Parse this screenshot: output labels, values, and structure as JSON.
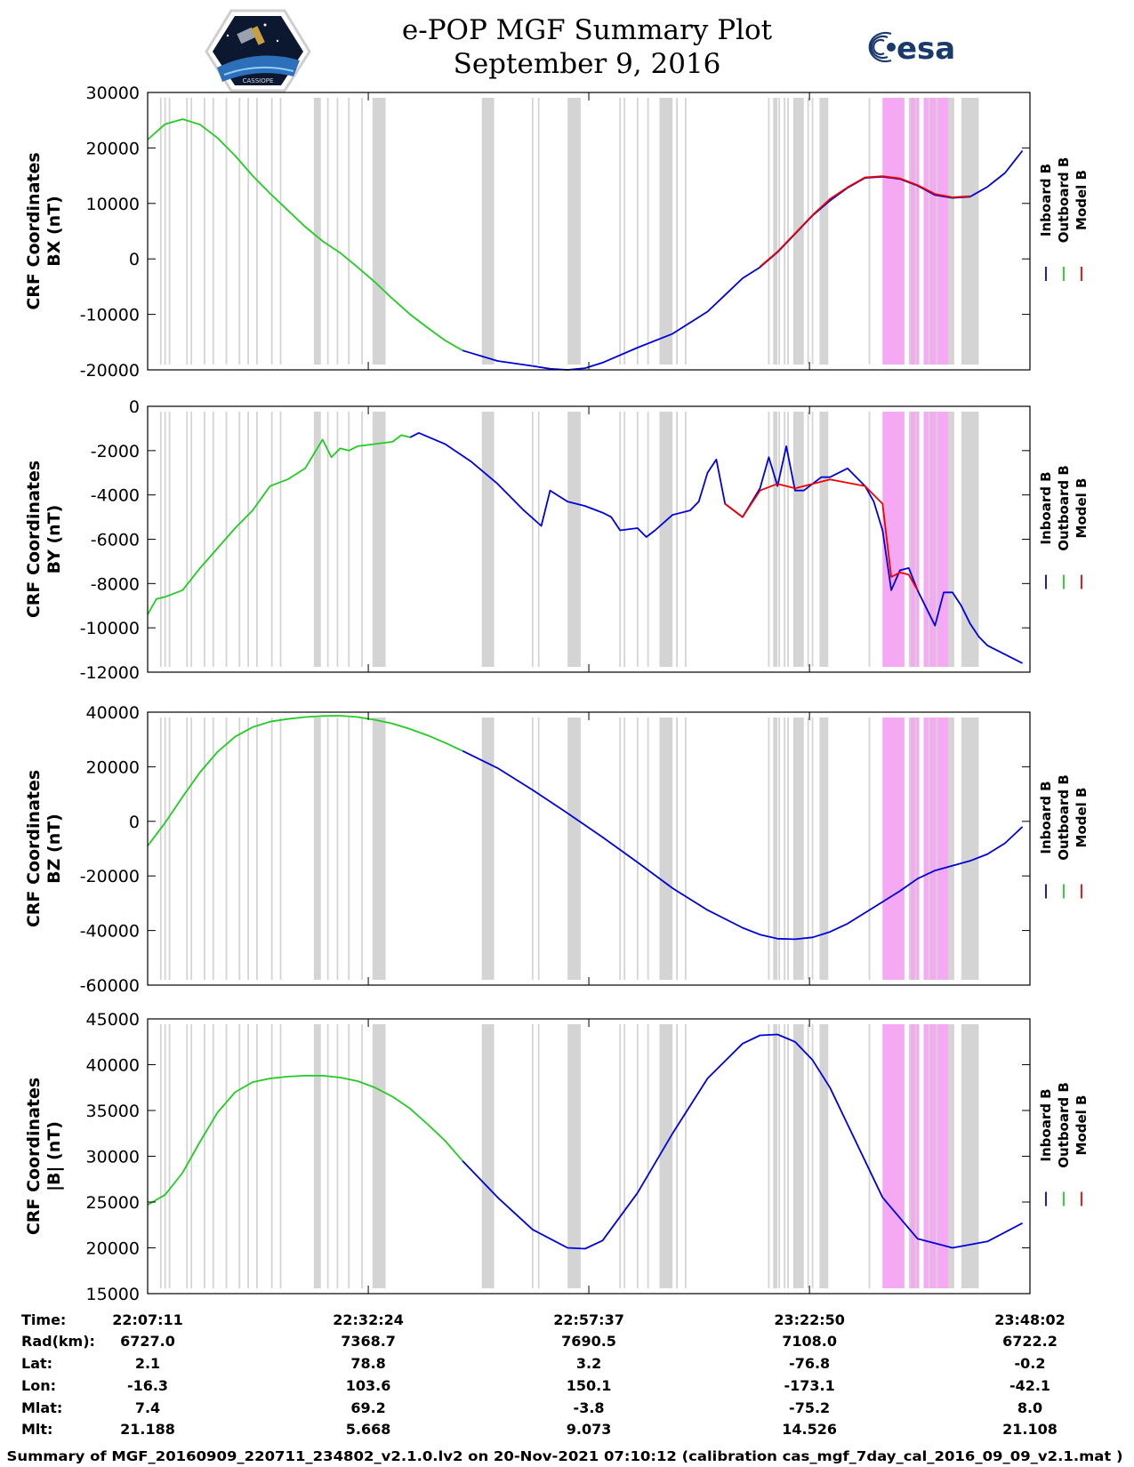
{
  "header": {
    "title_line1": "e-POP MGF Summary Plot",
    "title_line2": "September 9, 2016",
    "logo_left_text": "CASSIOPE",
    "logo_right_text": "esa"
  },
  "colors": {
    "inboard": "#0000dd",
    "outboard": "#22cc22",
    "model": "#ee0000",
    "gray_band": "#d4d4d4",
    "magenta_band": "#f5a9f2"
  },
  "chart_data": [
    {
      "type": "line",
      "ylabel_line1": "CRF Coordinates",
      "ylabel_line2": "BX (nT)",
      "ylim": [
        -20000,
        30000
      ],
      "yticks": [
        -20000,
        -10000,
        0,
        10000,
        20000,
        30000
      ],
      "x_unit": "minutes since 22:07:11",
      "legend": [
        "Inboard B",
        "Outboard B",
        "Model B"
      ],
      "series": [
        {
          "name": "Outboard B",
          "x": [
            0,
            2,
            4,
            6,
            8,
            10,
            12,
            14,
            16,
            18,
            20,
            22,
            24,
            26,
            28,
            30,
            32,
            34,
            36
          ],
          "values": [
            21500,
            24300,
            25200,
            24200,
            21800,
            18600,
            15000,
            11800,
            8800,
            5800,
            3200,
            1100,
            -1500,
            -4200,
            -7200,
            -10000,
            -12400,
            -14700,
            -16500
          ]
        },
        {
          "name": "Inboard B",
          "x": [
            36,
            40,
            44,
            46,
            48,
            50,
            52,
            56,
            60,
            64,
            66,
            68,
            70,
            72,
            74,
            76,
            78,
            80,
            82,
            84,
            86,
            88,
            90,
            92,
            94,
            96,
            98,
            100
          ],
          "values": [
            -16500,
            -18400,
            -19300,
            -19800,
            -20000,
            -19700,
            -18700,
            -16000,
            -13500,
            -9500,
            -6500,
            -3500,
            -1500,
            1200,
            4500,
            7800,
            10500,
            12800,
            14600,
            14800,
            14400,
            13200,
            11500,
            11000,
            11200,
            13000,
            15500,
            19500
          ]
        },
        {
          "name": "Model B",
          "x": [
            70,
            72,
            74,
            76,
            78,
            80,
            82,
            84,
            86,
            88,
            90,
            92,
            94
          ],
          "values": [
            -1400,
            1300,
            4600,
            7900,
            10800,
            12900,
            14700,
            14900,
            14500,
            13300,
            11700,
            11100,
            11300
          ]
        }
      ]
    },
    {
      "type": "line",
      "ylabel_line1": "CRF Coordinates",
      "ylabel_line2": "BY (nT)",
      "ylim": [
        -12000,
        0
      ],
      "yticks": [
        -12000,
        -10000,
        -8000,
        -6000,
        -4000,
        -2000,
        0
      ],
      "x_unit": "minutes since 22:07:11",
      "legend": [
        "Inboard B",
        "Outboard B",
        "Model B"
      ],
      "series": [
        {
          "name": "Outboard B",
          "x": [
            0,
            1,
            2,
            4,
            6,
            8,
            10,
            12,
            14,
            16,
            18,
            20,
            21,
            22,
            23,
            24,
            25,
            26,
            28,
            29,
            30
          ],
          "values": [
            -9400,
            -8700,
            -8600,
            -8300,
            -7300,
            -6400,
            -5500,
            -4700,
            -3600,
            -3300,
            -2800,
            -1500,
            -2300,
            -1900,
            -2000,
            -1800,
            -1750,
            -1700,
            -1600,
            -1300,
            -1400
          ]
        },
        {
          "name": "Inboard B",
          "x": [
            30,
            31,
            34,
            37,
            40,
            43,
            45,
            46,
            48,
            50,
            52,
            53,
            54,
            56,
            57,
            58,
            60,
            62,
            63,
            64,
            65,
            66,
            68,
            70,
            71,
            72,
            73,
            74,
            75,
            76,
            77,
            78,
            80,
            82,
            83,
            84,
            85,
            86,
            87,
            88,
            89,
            90,
            91,
            92,
            93,
            94,
            95,
            96,
            98,
            100
          ],
          "values": [
            -1400,
            -1200,
            -1700,
            -2500,
            -3500,
            -4700,
            -5400,
            -3800,
            -4300,
            -4500,
            -4800,
            -5000,
            -5600,
            -5500,
            -5900,
            -5600,
            -4900,
            -4700,
            -4300,
            -3000,
            -2400,
            -4400,
            -5000,
            -3700,
            -2300,
            -3600,
            -1800,
            -3800,
            -3800,
            -3500,
            -3200,
            -3200,
            -2800,
            -3600,
            -4300,
            -5600,
            -8300,
            -7400,
            -7300,
            -8300,
            -9100,
            -9900,
            -8400,
            -8400,
            -9000,
            -9800,
            -10400,
            -10800,
            -11200,
            -11600
          ]
        },
        {
          "name": "Model B",
          "x": [
            66,
            68,
            70,
            72,
            74,
            76,
            78,
            82,
            84,
            85,
            86,
            87,
            88
          ],
          "values": [
            -4400,
            -5000,
            -3800,
            -3500,
            -3700,
            -3500,
            -3300,
            -3600,
            -4400,
            -7700,
            -7500,
            -7600,
            -8300
          ]
        }
      ]
    },
    {
      "type": "line",
      "ylabel_line1": "CRF Coordinates",
      "ylabel_line2": "BZ (nT)",
      "ylim": [
        -60000,
        40000
      ],
      "yticks": [
        -60000,
        -40000,
        -20000,
        0,
        20000,
        40000
      ],
      "x_unit": "minutes since 22:07:11",
      "legend": [
        "Inboard B",
        "Outboard B",
        "Model B"
      ],
      "series": [
        {
          "name": "Outboard B",
          "x": [
            0,
            2,
            4,
            6,
            8,
            10,
            12,
            14,
            16,
            18,
            20,
            22,
            24,
            26,
            28,
            30,
            32,
            34,
            36
          ],
          "values": [
            -9000,
            -500,
            9000,
            18000,
            25500,
            31000,
            34500,
            36500,
            37500,
            38200,
            38600,
            38700,
            38200,
            37200,
            35800,
            33800,
            31500,
            28800,
            25800
          ]
        },
        {
          "name": "Inboard B",
          "x": [
            36,
            40,
            44,
            48,
            52,
            56,
            60,
            64,
            68,
            70,
            72,
            74,
            76,
            78,
            80,
            84,
            86,
            88,
            90,
            94,
            96,
            98,
            100
          ],
          "values": [
            25800,
            19500,
            11500,
            3000,
            -5800,
            -15000,
            -24500,
            -32500,
            -39000,
            -41500,
            -43000,
            -43200,
            -42500,
            -40500,
            -37500,
            -29500,
            -25500,
            -21000,
            -18000,
            -14500,
            -12000,
            -8000,
            -2000
          ]
        }
      ]
    },
    {
      "type": "line",
      "ylabel_line1": "CRF Coordinates",
      "ylabel_line2": "|B| (nT)",
      "ylim": [
        15000,
        45000
      ],
      "yticks": [
        15000,
        20000,
        25000,
        30000,
        35000,
        40000,
        45000
      ],
      "x_unit": "minutes since 22:07:11",
      "legend": [
        "Inboard B",
        "Outboard B",
        "Model B"
      ],
      "series": [
        {
          "name": "Outboard B",
          "x": [
            0,
            2,
            4,
            6,
            8,
            10,
            12,
            14,
            16,
            18,
            20,
            22,
            24,
            26,
            28,
            30,
            32,
            34,
            36
          ],
          "values": [
            24700,
            25800,
            28200,
            31600,
            34800,
            37000,
            38100,
            38500,
            38700,
            38800,
            38800,
            38600,
            38200,
            37500,
            36500,
            35200,
            33500,
            31700,
            29500
          ]
        },
        {
          "name": "Inboard B",
          "x": [
            36,
            40,
            44,
            48,
            50,
            52,
            56,
            60,
            64,
            68,
            70,
            72,
            74,
            76,
            78,
            80,
            84,
            88,
            92,
            96,
            100
          ],
          "values": [
            29500,
            25500,
            22000,
            20000,
            19900,
            20800,
            26000,
            32500,
            38500,
            42300,
            43200,
            43300,
            42500,
            40500,
            37500,
            33500,
            25500,
            21000,
            20000,
            20700,
            22700
          ]
        }
      ]
    }
  ],
  "shading": {
    "gray_lines": [
      1.5,
      2.0,
      2.5,
      4.5,
      5.0,
      6.5,
      7.5,
      9.0,
      10.5,
      11.5,
      12.5,
      14.2,
      15.2,
      19.3,
      20.6,
      21.7,
      23.0,
      24.5,
      44.0,
      44.7,
      54.0,
      54.5,
      56.0,
      57.2,
      59.2,
      60.5,
      61.5,
      71.0,
      72.2,
      72.8,
      73.2,
      75.5,
      76.0,
      82.5,
      87.8,
      89.3,
      90.2
    ],
    "gray_bands": [
      [
        19.0,
        19.8
      ],
      [
        25.7,
        27.2
      ],
      [
        38.2,
        39.6
      ],
      [
        48.0,
        49.5
      ],
      [
        58.5,
        60.0
      ],
      [
        71.5,
        72.0
      ],
      [
        73.8,
        75.0
      ],
      [
        76.8,
        77.8
      ],
      [
        87.0,
        87.5
      ],
      [
        91.0,
        92.2
      ],
      [
        93.0,
        95.0
      ]
    ],
    "magenta_bands": [
      [
        84.0,
        86.5
      ],
      [
        87.2,
        88.2
      ],
      [
        88.7,
        91.5
      ]
    ]
  },
  "xticks": [
    0,
    25.22,
    50.43,
    75.65,
    100.85
  ],
  "bottom_table": {
    "rows": [
      {
        "label": "Time:",
        "values": [
          "22:07:11",
          "22:32:24",
          "22:57:37",
          "23:22:50",
          "23:48:02"
        ]
      },
      {
        "label": "Rad(km):",
        "values": [
          "6727.0",
          "7368.7",
          "7690.5",
          "7108.0",
          "6722.2"
        ]
      },
      {
        "label": "Lat:",
        "values": [
          "2.1",
          "78.8",
          "3.2",
          "-76.8",
          "-0.2"
        ]
      },
      {
        "label": "Lon:",
        "values": [
          "-16.3",
          "103.6",
          "150.1",
          "-173.1",
          "-42.1"
        ]
      },
      {
        "label": "Mlat:",
        "values": [
          "7.4",
          "69.2",
          "-3.8",
          "-75.2",
          "8.0"
        ]
      },
      {
        "label": "Mlt:",
        "values": [
          "21.188",
          "5.668",
          "9.073",
          "14.526",
          "21.108"
        ]
      }
    ]
  },
  "footer": {
    "text": "Summary of MGF_20160909_220711_234802_v2.1.0.lv2 on 20-Nov-2021 07:10:12 (calibration cas_mgf_7day_cal_2016_09_09_v2.1.mat )"
  }
}
